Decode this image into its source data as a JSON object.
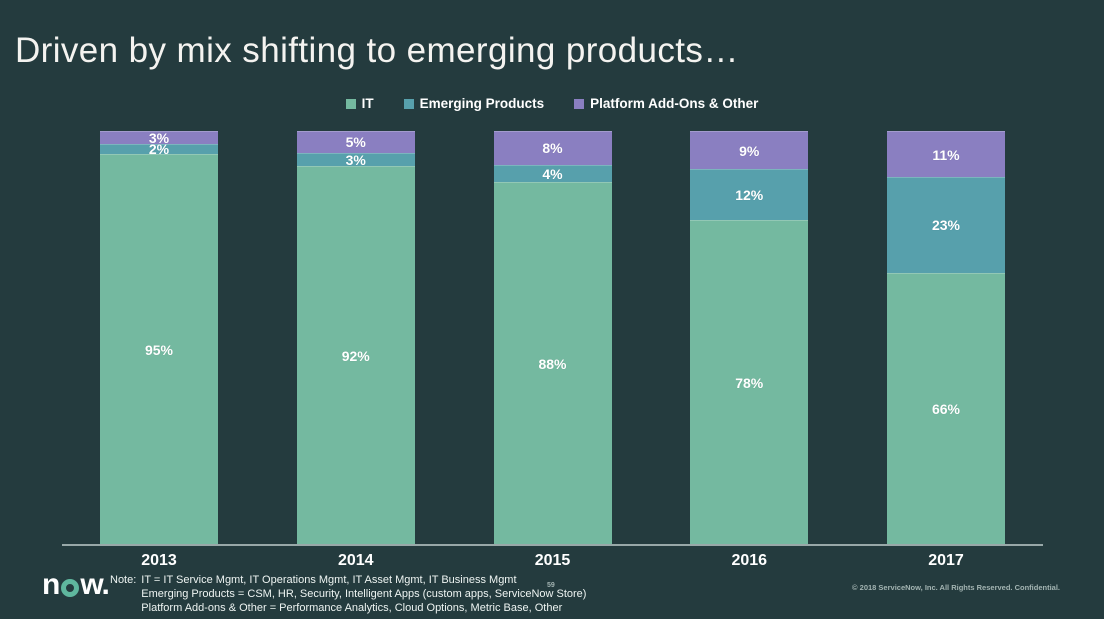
{
  "slide": {
    "title": "Driven by mix shifting to emerging products…",
    "background_color": "#243b3e",
    "page_number": "59",
    "copyright": "© 2018 ServiceNow, Inc. All Rights Reserved. Confidential.",
    "logo": {
      "prefix": "n",
      "suffix": "w."
    }
  },
  "legend": {
    "items": [
      {
        "label": "IT",
        "color": "#74b9a0"
      },
      {
        "label": "Emerging Products",
        "color": "#57a0ac"
      },
      {
        "label": "Platform Add-Ons & Other",
        "color": "#8a7fc1"
      }
    ]
  },
  "chart_data": {
    "type": "bar",
    "stacked": true,
    "units": "percent",
    "title": "",
    "xlabel": "",
    "ylabel": "",
    "ylim": [
      0,
      100
    ],
    "gridlines": false,
    "legend_position": "top",
    "categories": [
      "2013",
      "2014",
      "2015",
      "2016",
      "2017"
    ],
    "series": [
      {
        "name": "IT",
        "color": "#74b9a0",
        "values": [
          95,
          92,
          88,
          78,
          66
        ]
      },
      {
        "name": "Emerging Products",
        "color": "#57a0ac",
        "values": [
          2,
          3,
          4,
          12,
          23
        ]
      },
      {
        "name": "Platform Add-Ons & Other",
        "color": "#8a7fc1",
        "values": [
          3,
          5,
          8,
          9,
          11
        ]
      }
    ],
    "value_suffix": "%",
    "label_color": "#ffffff",
    "axis_line_color": "#98a8a8"
  },
  "note": {
    "label": "Note:",
    "lines": [
      "IT = IT Service Mgmt, IT Operations Mgmt, IT Asset Mgmt, IT Business Mgmt",
      "Emerging Products = CSM, HR, Security, Intelligent Apps (custom apps, ServiceNow Store)",
      "Platform Add-ons & Other = Performance Analytics, Cloud Options, Metric Base, Other"
    ]
  }
}
